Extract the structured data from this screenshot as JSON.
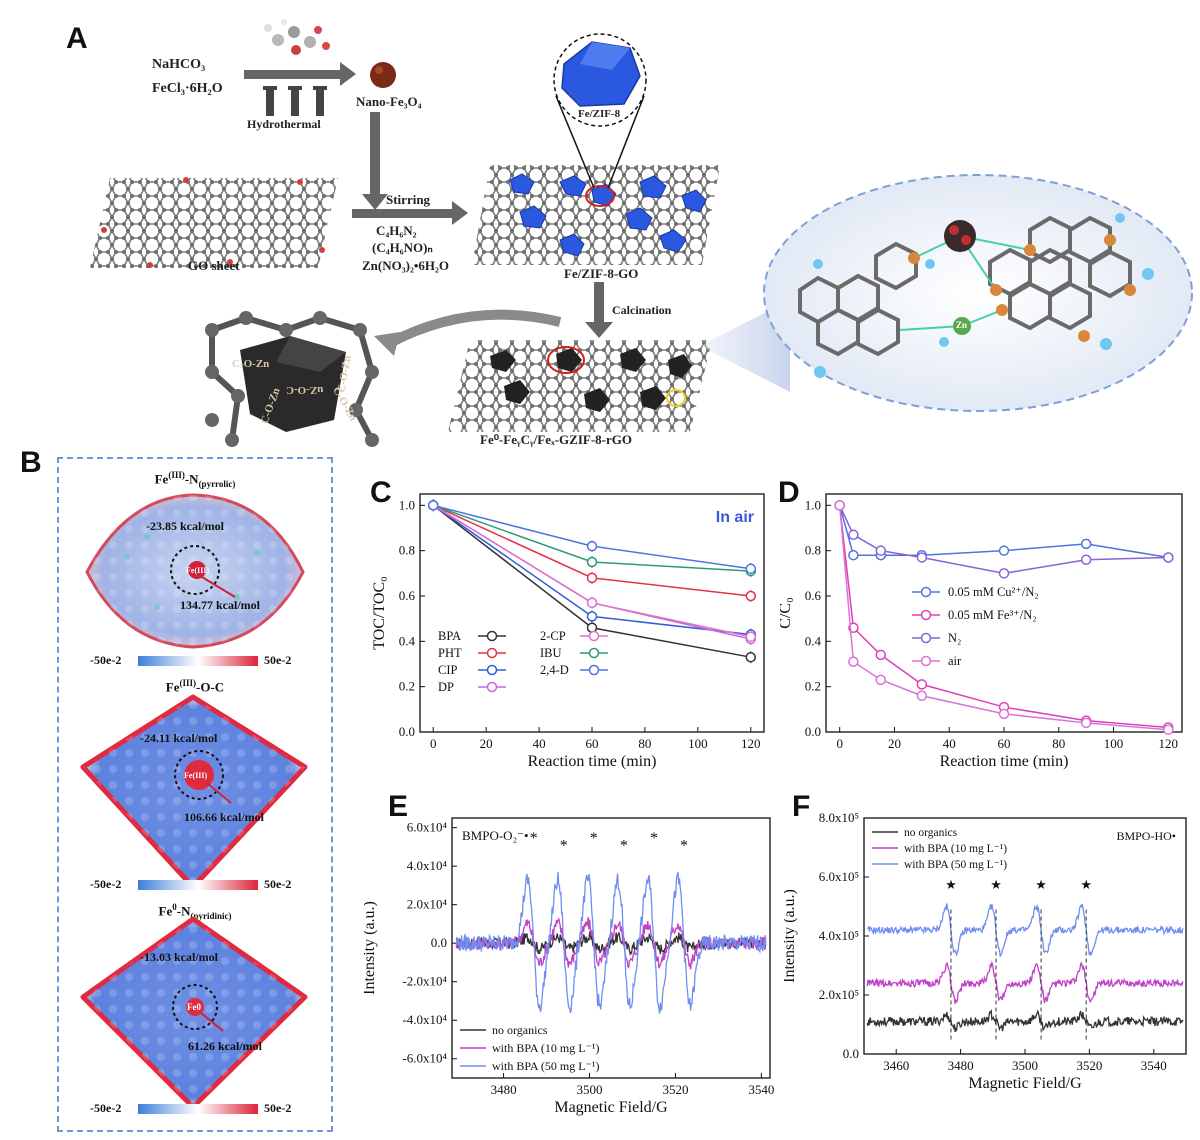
{
  "panels": {
    "A": "A",
    "B": "B",
    "C": "C",
    "D": "D",
    "E": "E",
    "F": "F"
  },
  "schemeA": {
    "reagent1": "NaHCO₃",
    "reagent2": "FeCl₃·6H₂O",
    "hydrothermal": "Hydrothermal",
    "nano": "Nano-Fe₃O₄",
    "stirring": "Stirring",
    "c4": "C₄H₆N₂",
    "polymer": "(C₄H₆NO)ₙ",
    "zinc": "Zn(NO₃)₂•6H₂O",
    "go_sheet": "GO sheet",
    "fezif": "Fe/ZIF-8",
    "fezifgo": "Fe/ZIF-8-GO",
    "calcination": "Calcination",
    "product": "Fe⁰-FeᵧCᵧ/Feₓ-GZIF-8-rGO",
    "bond1": "C-O-Zn",
    "bond2": "uZ-O-C",
    "bond3": "C-O-Zn",
    "bond4": "C-O-Zn",
    "bond5": "C-O-Zn",
    "zn": "Zn"
  },
  "panelB": {
    "maps": [
      {
        "title": "Fe(III)-N(pyrrolic)",
        "title_main": "Fe",
        "title_sup": "(III)",
        "title_rest": "-N",
        "title_sub": "(pyrrolic)",
        "top_energy": "-23.85 kcal/mol",
        "center": "Fe(III)",
        "bottom_energy": "134.77 kcal/mol"
      },
      {
        "title": "Fe(III)-O-C",
        "title_main": "Fe",
        "title_sup": "(III)",
        "title_rest": "-O-C",
        "title_sub": "",
        "top_energy": "-24.11 kcal/mol",
        "center": "Fe(III)",
        "bottom_energy": "106.66 kcal/mol"
      },
      {
        "title": "Fe0-N(pyridinic)",
        "title_main": "Fe",
        "title_sup": "0",
        "title_rest": "-N",
        "title_sub": "(pyridinic)",
        "top_energy": "-13.03 kcal/mol",
        "center": "Fe0",
        "bottom_energy": "61.26 kcal/mol"
      }
    ],
    "colorbar_min": "-50e-2",
    "colorbar_max": "50e-2",
    "colors": {
      "low": "#3f7fd8",
      "mid": "#ffffff",
      "high": "#e0223a"
    }
  },
  "chart_data": [
    {
      "id": "C",
      "type": "line",
      "xlabel": "Reaction time (min)",
      "ylabel": "TOC/TOC₀",
      "annotation": "In air",
      "xlim": [
        -5,
        125
      ],
      "ylim": [
        0,
        1.05
      ],
      "xticks": [
        0,
        20,
        40,
        60,
        80,
        100,
        120
      ],
      "yticks": [
        0.0,
        0.2,
        0.4,
        0.6,
        0.8,
        1.0
      ],
      "x": [
        0,
        60,
        120
      ],
      "series": [
        {
          "name": "BPA",
          "color": "#333333",
          "values": [
            1.0,
            0.46,
            0.33
          ]
        },
        {
          "name": "PHT",
          "color": "#e8304a",
          "values": [
            1.0,
            0.68,
            0.6
          ]
        },
        {
          "name": "CIP",
          "color": "#2f5fd8",
          "values": [
            1.0,
            0.51,
            0.43
          ]
        },
        {
          "name": "DP",
          "color": "#c565e0",
          "values": [
            1.0,
            0.57,
            0.41
          ]
        },
        {
          "name": "2-CP",
          "color": "#e072c8",
          "values": [
            1.0,
            0.57,
            0.42
          ]
        },
        {
          "name": "IBU",
          "color": "#2a9a7a",
          "values": [
            1.0,
            0.75,
            0.71
          ]
        },
        {
          "name": "2,4-D",
          "color": "#4f74e0",
          "values": [
            1.0,
            0.82,
            0.72
          ]
        }
      ]
    },
    {
      "id": "D",
      "type": "line",
      "xlabel": "Reaction time (min)",
      "ylabel": "C/C₀",
      "xlim": [
        -5,
        125
      ],
      "ylim": [
        0,
        1.05
      ],
      "xticks": [
        0,
        20,
        40,
        60,
        80,
        100,
        120
      ],
      "yticks": [
        0.0,
        0.2,
        0.4,
        0.6,
        0.8,
        1.0
      ],
      "x": [
        0,
        5,
        15,
        30,
        60,
        90,
        120
      ],
      "series": [
        {
          "name": "0.05 mM Cu²⁺/N₂",
          "color": "#4f74e0",
          "values": [
            1.0,
            0.78,
            0.78,
            0.78,
            0.8,
            0.83,
            0.77
          ]
        },
        {
          "name": "0.05 mM Fe³⁺/N₂",
          "color": "#e040b8",
          "values": [
            1.0,
            0.46,
            0.34,
            0.21,
            0.11,
            0.05,
            0.02
          ]
        },
        {
          "name": "N₂",
          "color": "#8a62d8",
          "values": [
            1.0,
            0.87,
            0.8,
            0.77,
            0.7,
            0.76,
            0.77
          ]
        },
        {
          "name": "air",
          "color": "#d874d8",
          "values": [
            1.0,
            0.31,
            0.23,
            0.16,
            0.08,
            0.04,
            0.01
          ]
        }
      ]
    },
    {
      "id": "E",
      "type": "line",
      "xlabel": "Magnetic Field/G",
      "ylabel": "Intensity (a.u.)",
      "annotation": "BMPO-O₂⁻•",
      "xlim": [
        3468,
        3542
      ],
      "ylim": [
        -70000,
        65000
      ],
      "xticks": [
        3480,
        3500,
        3520,
        3540
      ],
      "yticks": [
        -60000,
        -40000,
        -20000,
        0,
        20000,
        40000,
        60000
      ],
      "ytick_labels": [
        "-6.0x10⁴",
        "-4.0x10⁴",
        "-2.0x10⁴",
        "0.0",
        "2.0x10⁴",
        "4.0x10⁴",
        "6.0x10⁴"
      ],
      "peaks": [
        3487,
        3494,
        3501,
        3508,
        3515,
        3522
      ],
      "peak_marker": "*",
      "series": [
        {
          "name": "no organics",
          "color": "#333333",
          "amplitude": 4000
        },
        {
          "name": "with BPA (10 mg L⁻¹)",
          "color": "#c040c8",
          "amplitude": 14000
        },
        {
          "name": "with BPA (50 mg L⁻¹)",
          "color": "#6f8ef0",
          "amplitude": 45000
        }
      ]
    },
    {
      "id": "F",
      "type": "line",
      "xlabel": "Magnetic Field/G",
      "ylabel": "Intensity (a.u.)",
      "annotation": "BMPO-HO•",
      "xlim": [
        3450,
        3550
      ],
      "ylim": [
        0,
        800000
      ],
      "xticks": [
        3460,
        3480,
        3500,
        3520,
        3540
      ],
      "yticks": [
        0,
        200000,
        400000,
        600000,
        800000
      ],
      "ytick_labels": [
        "0.0",
        "2.0x10⁵",
        "4.0x10⁵",
        "6.0x10⁵",
        "8.0x10⁵"
      ],
      "peaks": [
        3477,
        3491,
        3505,
        3519
      ],
      "peak_marker": "★",
      "series": [
        {
          "name": "no organics",
          "color": "#333333",
          "baseline": 110000,
          "amplitude": 30000
        },
        {
          "name": "with BPA (10 mg L⁻¹)",
          "color": "#c040c8",
          "baseline": 240000,
          "amplitude": 80000
        },
        {
          "name": "with BPA (50 mg L⁻¹)",
          "color": "#6f8ef0",
          "baseline": 420000,
          "amplitude": 110000
        }
      ]
    }
  ]
}
